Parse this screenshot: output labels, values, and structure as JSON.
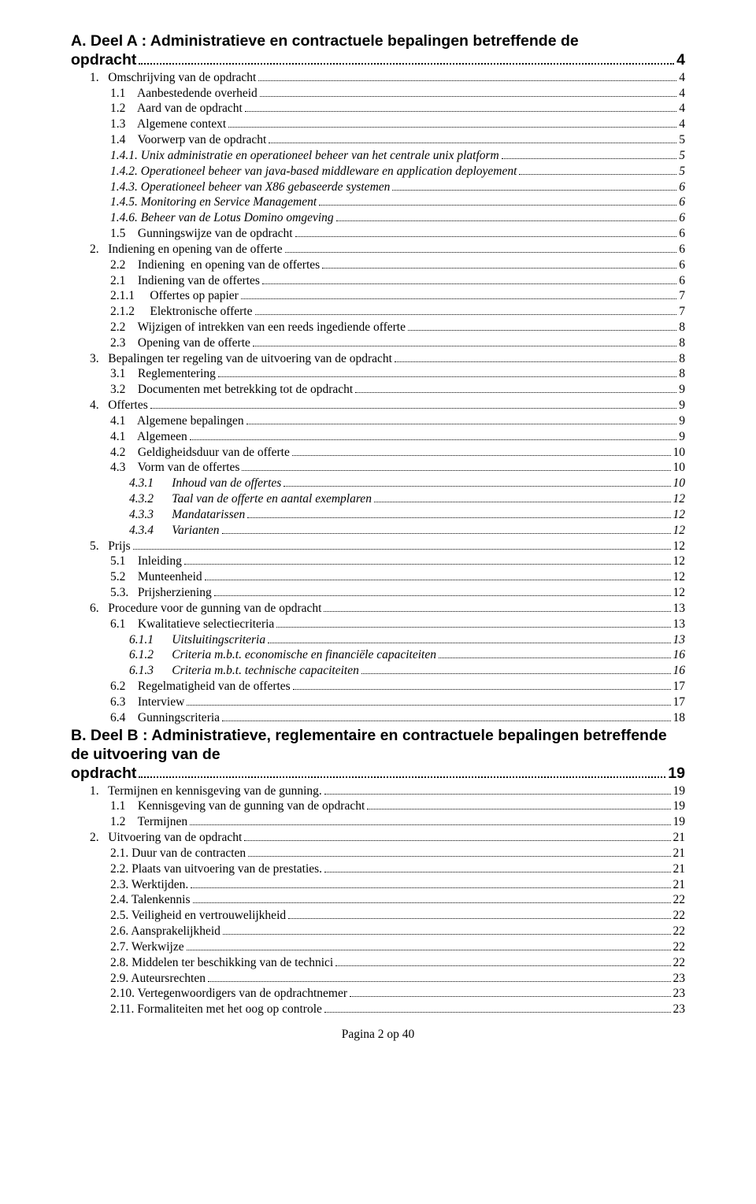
{
  "toc": [
    {
      "type": "heading",
      "style": "heading-a",
      "text": "A.    Deel A : Administratieve en contractuele  bepalingen betreffende de opdracht",
      "page": "4"
    },
    {
      "type": "item",
      "level": 1,
      "italic": false,
      "label": "1.   Omschrijving van de opdracht",
      "page": "4"
    },
    {
      "type": "item",
      "level": 2,
      "italic": false,
      "label": "1.1    Aanbestedende overheid",
      "page": "4"
    },
    {
      "type": "item",
      "level": 2,
      "italic": false,
      "label": "1.2    Aard van de opdracht",
      "page": "4"
    },
    {
      "type": "item",
      "level": 2,
      "italic": false,
      "label": "1.3    Algemene context",
      "page": "4"
    },
    {
      "type": "item",
      "level": 2,
      "italic": false,
      "label": "1.4    Voorwerp van de opdracht",
      "page": "5"
    },
    {
      "type": "item",
      "level": 2,
      "italic": true,
      "label": "1.4.1. Unix administratie en operationeel beheer van het centrale unix platform",
      "page": "5"
    },
    {
      "type": "item",
      "level": 2,
      "italic": true,
      "label": "1.4.2. Operationeel beheer van java-based middleware en application deployement",
      "page": "5"
    },
    {
      "type": "item",
      "level": 2,
      "italic": true,
      "label": "1.4.3. Operationeel beheer van X86 gebaseerde systemen",
      "page": "6"
    },
    {
      "type": "item",
      "level": 2,
      "italic": true,
      "label": "1.4.5. Monitoring en Service Management",
      "page": "6"
    },
    {
      "type": "item",
      "level": 2,
      "italic": true,
      "label": "1.4.6. Beheer van de Lotus Domino omgeving",
      "page": "6"
    },
    {
      "type": "item",
      "level": 2,
      "italic": false,
      "label": "1.5    Gunningswijze van de opdracht",
      "page": "6"
    },
    {
      "type": "item",
      "level": 1,
      "italic": false,
      "label": "2.   Indiening en opening van de offerte",
      "page": "6"
    },
    {
      "type": "item",
      "level": 2,
      "italic": false,
      "label": "2.2    Indiening  en opening van de offertes",
      "page": "6"
    },
    {
      "type": "item",
      "level": 2,
      "italic": false,
      "label": "2.1    Indiening van de offertes",
      "page": "6"
    },
    {
      "type": "item",
      "level": 2,
      "italic": false,
      "label": "2.1.1     Offertes op papier",
      "page": "7"
    },
    {
      "type": "item",
      "level": 2,
      "italic": false,
      "label": "2.1.2     Elektronische offerte",
      "page": "7"
    },
    {
      "type": "item",
      "level": 2,
      "italic": false,
      "label": "2.2    Wijzigen of intrekken van een reeds ingediende offerte",
      "page": "8"
    },
    {
      "type": "item",
      "level": 2,
      "italic": false,
      "label": "2.3    Opening van de offerte",
      "page": "8"
    },
    {
      "type": "item",
      "level": 1,
      "italic": false,
      "label": "3.   Bepalingen ter regeling van de uitvoering van de opdracht",
      "page": "8"
    },
    {
      "type": "item",
      "level": 2,
      "italic": false,
      "label": "3.1    Reglementering",
      "page": "8"
    },
    {
      "type": "item",
      "level": 2,
      "italic": false,
      "label": "3.2    Documenten met betrekking tot de opdracht",
      "page": "9"
    },
    {
      "type": "item",
      "level": 1,
      "italic": false,
      "label": "4.   Offertes",
      "page": "9"
    },
    {
      "type": "item",
      "level": 2,
      "italic": false,
      "label": "4.1    Algemene bepalingen",
      "page": "9"
    },
    {
      "type": "item",
      "level": 2,
      "italic": false,
      "label": "4.1    Algemeen",
      "page": "9"
    },
    {
      "type": "item",
      "level": 2,
      "italic": false,
      "label": "4.2    Geldigheidsduur van de offerte",
      "page": "10"
    },
    {
      "type": "item",
      "level": 2,
      "italic": false,
      "label": "4.3    Vorm van de offertes",
      "page": "10"
    },
    {
      "type": "item",
      "level": 3,
      "italic": true,
      "label": "4.3.1      Inhoud van de offertes",
      "page": "10"
    },
    {
      "type": "item",
      "level": 3,
      "italic": true,
      "label": "4.3.2      Taal van de offerte en aantal exemplaren",
      "page": "12"
    },
    {
      "type": "item",
      "level": 3,
      "italic": true,
      "label": "4.3.3      Mandatarissen",
      "page": "12"
    },
    {
      "type": "item",
      "level": 3,
      "italic": true,
      "label": "4.3.4      Varianten",
      "page": "12"
    },
    {
      "type": "item",
      "level": 1,
      "italic": false,
      "label": "5.   Prijs",
      "page": "12"
    },
    {
      "type": "item",
      "level": 2,
      "italic": false,
      "label": "5.1    Inleiding",
      "page": "12"
    },
    {
      "type": "item",
      "level": 2,
      "italic": false,
      "label": "5.2    Munteenheid",
      "page": "12"
    },
    {
      "type": "item",
      "level": 2,
      "italic": false,
      "label": "5.3.   Prijsherziening",
      "page": "12"
    },
    {
      "type": "item",
      "level": 1,
      "italic": false,
      "label": "6.   Procedure voor de gunning van de opdracht",
      "page": "13"
    },
    {
      "type": "item",
      "level": 2,
      "italic": false,
      "label": "6.1    Kwalitatieve selectiecriteria",
      "page": "13"
    },
    {
      "type": "item",
      "level": 3,
      "italic": true,
      "label": "6.1.1      Uitsluitingscriteria",
      "page": "13"
    },
    {
      "type": "item",
      "level": 3,
      "italic": true,
      "label": "6.1.2      Criteria m.b.t. economische en financiële capaciteiten",
      "page": "16"
    },
    {
      "type": "item",
      "level": 3,
      "italic": true,
      "label": "6.1.3      Criteria m.b.t. technische capaciteiten",
      "page": "16"
    },
    {
      "type": "item",
      "level": 2,
      "italic": false,
      "label": "6.2    Regelmatigheid van de offertes",
      "page": "17"
    },
    {
      "type": "item",
      "level": 2,
      "italic": false,
      "label": "6.3    Interview",
      "page": "17"
    },
    {
      "type": "item",
      "level": 2,
      "italic": false,
      "label": "6.4    Gunningscriteria",
      "page": "18"
    },
    {
      "type": "heading",
      "style": "heading-b",
      "text": "B.    Deel B : Administratieve, reglementaire en contractuele bepalingen betreffende de uitvoering van de opdracht",
      "page": "19"
    },
    {
      "type": "item",
      "level": 1,
      "italic": false,
      "label": "1.   Termijnen en kennisgeving van de gunning.",
      "page": "19"
    },
    {
      "type": "item",
      "level": 2,
      "italic": false,
      "label": "1.1    Kennisgeving van de gunning van de opdracht",
      "page": "19"
    },
    {
      "type": "item",
      "level": 2,
      "italic": false,
      "label": "1.2    Termijnen",
      "page": "19"
    },
    {
      "type": "item",
      "level": 1,
      "italic": false,
      "label": "2.   Uitvoering van de opdracht",
      "page": "21"
    },
    {
      "type": "item",
      "level": 2,
      "italic": false,
      "label": "2.1. Duur van de contracten",
      "page": "21"
    },
    {
      "type": "item",
      "level": 2,
      "italic": false,
      "label": "2.2. Plaats van uitvoering van de prestaties.",
      "page": "21"
    },
    {
      "type": "item",
      "level": 2,
      "italic": false,
      "label": "2.3. Werktijden.",
      "page": "21"
    },
    {
      "type": "item",
      "level": 2,
      "italic": false,
      "label": "2.4. Talenkennis",
      "page": "22"
    },
    {
      "type": "item",
      "level": 2,
      "italic": false,
      "label": "2.5. Veiligheid en vertrouwelijkheid",
      "page": "22"
    },
    {
      "type": "item",
      "level": 2,
      "italic": false,
      "label": "2.6. Aansprakelijkheid",
      "page": "22"
    },
    {
      "type": "item",
      "level": 2,
      "italic": false,
      "label": "2.7. Werkwijze",
      "page": "22"
    },
    {
      "type": "item",
      "level": 2,
      "italic": false,
      "label": "2.8. Middelen ter beschikking van de technici",
      "page": "22"
    },
    {
      "type": "item",
      "level": 2,
      "italic": false,
      "label": "2.9. Auteursrechten",
      "page": "23"
    },
    {
      "type": "item",
      "level": 2,
      "italic": false,
      "label": "2.10. Vertegenwoordigers van de opdrachtnemer",
      "page": "23"
    },
    {
      "type": "item",
      "level": 2,
      "italic": false,
      "label": "2.11. Formaliteiten met het oog op controle",
      "page": "23"
    }
  ],
  "footer": "Pagina 2 op 40"
}
